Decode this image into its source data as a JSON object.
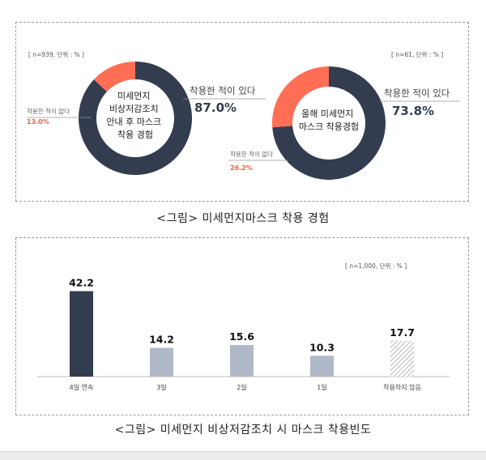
{
  "figure1": {
    "caption": "<그림> 미세먼지마스크 착용 경험",
    "donuts": [
      {
        "sample": "[ n=939, 단위 : % ]",
        "center_lines": [
          "미세먼지",
          "비상저감조치",
          "안내 후 마스크",
          "착용 경험"
        ],
        "yes_label": "착용한 적이 있다",
        "yes_value": 87.0,
        "yes_text": "87.0%",
        "no_label": "착용한 적이 없다",
        "no_value": 13.0,
        "no_text": "13.0%"
      },
      {
        "sample": "[ n=61, 단위 : % ]",
        "center_lines": [
          "올해 미세먼지",
          "마스크 착용경험"
        ],
        "yes_label": "착용한 적이 있다",
        "yes_value": 73.8,
        "yes_text": "73.8%",
        "no_label": "착용한 적이 없다",
        "no_value": 26.2,
        "no_text": "26.2%"
      }
    ],
    "colors": {
      "yes": "#333d4f",
      "no": "#ff6e55",
      "accent_text": "#e8604a"
    }
  },
  "chart_data": {
    "type": "bar",
    "sample": "[ n=1,000, 단위 : % ]",
    "categories": [
      "4일 연속",
      "3일",
      "2일",
      "1일",
      "착용하지 않음"
    ],
    "values": [
      42.2,
      14.2,
      15.6,
      10.3,
      17.7
    ],
    "value_labels": [
      "42.2",
      "14.2",
      "15.6",
      "10.3",
      "17.7"
    ],
    "ylim": [
      0,
      48
    ],
    "legend": "none",
    "grid": false,
    "colors": [
      "#333d4f",
      "#b0b9c8",
      "#b0b9c8",
      "#b0b9c8",
      "hatched"
    ],
    "caption": "<그림> 미세먼지 비상저감조치 시 마스크 착용빈도"
  }
}
